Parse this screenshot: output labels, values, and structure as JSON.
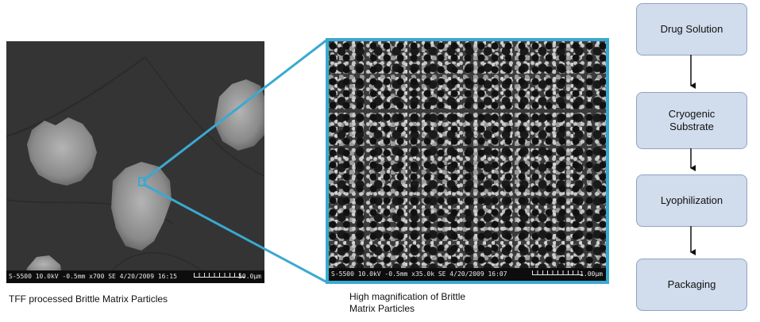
{
  "left_image": {
    "info": "S-5500 10.0kV -0.5mm x700 SE 4/20/2009 16:15",
    "scale": "50.0µm",
    "caption": "TFF processed Brittle Matrix Particles"
  },
  "right_image": {
    "info": "S-5500 10.0kV -0.5mm x35.0k SE 4/20/2009 16:07",
    "scale": "1.00µm",
    "caption_line1": "High magnification of Brittle",
    "caption_line2": "Matrix Particles"
  },
  "flow": {
    "steps": [
      {
        "label_line1": "Drug Solution",
        "label_line2": ""
      },
      {
        "label_line1": "Cryogenic",
        "label_line2": "Substrate"
      },
      {
        "label_line1": "Lyophilization",
        "label_line2": ""
      },
      {
        "label_line1": "Packaging",
        "label_line2": ""
      }
    ]
  },
  "colors": {
    "zoom_frame": "#3aa9d0",
    "flow_box_fill": "#d1dcec",
    "flow_box_border": "#8ea4c4"
  }
}
